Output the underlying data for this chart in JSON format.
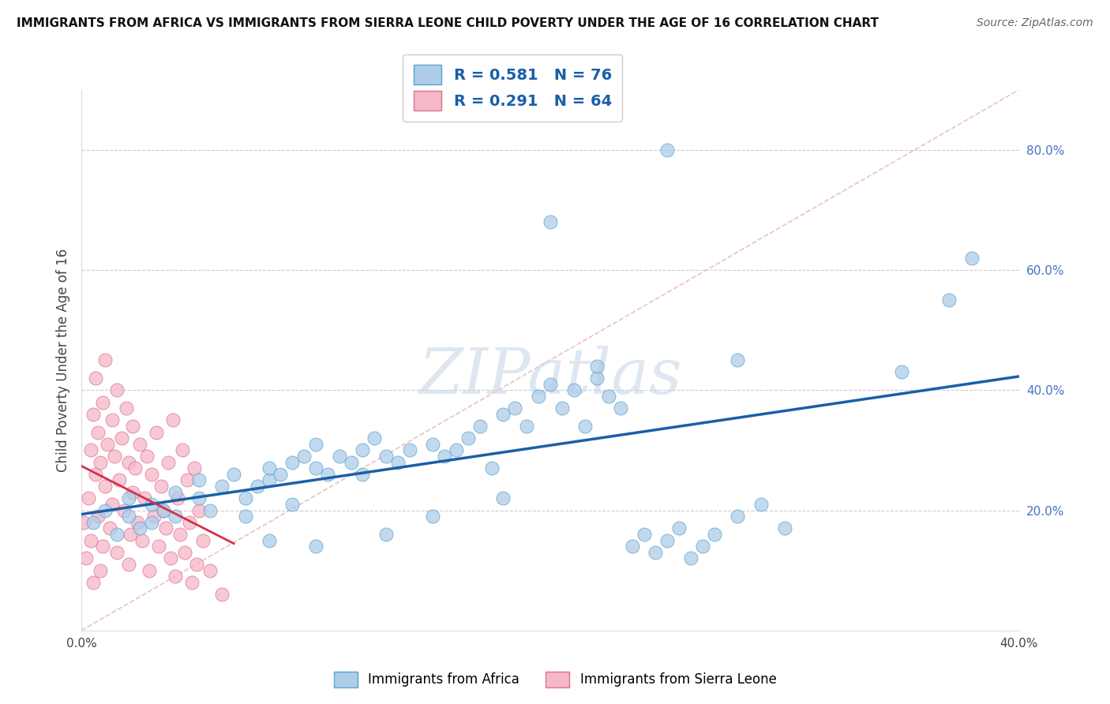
{
  "title": "IMMIGRANTS FROM AFRICA VS IMMIGRANTS FROM SIERRA LEONE CHILD POVERTY UNDER THE AGE OF 16 CORRELATION CHART",
  "source": "Source: ZipAtlas.com",
  "ylabel": "Child Poverty Under the Age of 16",
  "xlim": [
    0.0,
    0.4
  ],
  "ylim": [
    0.0,
    0.9
  ],
  "R_africa": 0.581,
  "N_africa": 76,
  "R_sierra": 0.291,
  "N_sierra": 64,
  "africa_color": "#aecde8",
  "africa_edge": "#5ba3d0",
  "sierra_color": "#f5b8c8",
  "sierra_edge": "#e07090",
  "africa_line_color": "#1a5fa8",
  "sierra_line_color": "#d4324a",
  "ref_line_color": "#e8b0b8",
  "watermark_color": "#c8d8e8",
  "africa_x": [
    0.005,
    0.01,
    0.015,
    0.02,
    0.02,
    0.025,
    0.03,
    0.03,
    0.035,
    0.04,
    0.04,
    0.05,
    0.05,
    0.055,
    0.06,
    0.065,
    0.07,
    0.07,
    0.075,
    0.08,
    0.08,
    0.085,
    0.09,
    0.09,
    0.095,
    0.1,
    0.1,
    0.105,
    0.11,
    0.115,
    0.12,
    0.12,
    0.125,
    0.13,
    0.135,
    0.14,
    0.15,
    0.155,
    0.16,
    0.165,
    0.17,
    0.175,
    0.18,
    0.185,
    0.19,
    0.195,
    0.2,
    0.205,
    0.21,
    0.215,
    0.22,
    0.225,
    0.23,
    0.235,
    0.24,
    0.245,
    0.25,
    0.255,
    0.26,
    0.265,
    0.27,
    0.28,
    0.29,
    0.3,
    0.22,
    0.28,
    0.35,
    0.37,
    0.38,
    0.25,
    0.2,
    0.18,
    0.15,
    0.13,
    0.1,
    0.08
  ],
  "africa_y": [
    0.18,
    0.2,
    0.16,
    0.22,
    0.19,
    0.17,
    0.21,
    0.18,
    0.2,
    0.19,
    0.23,
    0.22,
    0.25,
    0.2,
    0.24,
    0.26,
    0.22,
    0.19,
    0.24,
    0.25,
    0.27,
    0.26,
    0.28,
    0.21,
    0.29,
    0.27,
    0.31,
    0.26,
    0.29,
    0.28,
    0.3,
    0.26,
    0.32,
    0.29,
    0.28,
    0.3,
    0.31,
    0.29,
    0.3,
    0.32,
    0.34,
    0.27,
    0.36,
    0.37,
    0.34,
    0.39,
    0.41,
    0.37,
    0.4,
    0.34,
    0.42,
    0.39,
    0.37,
    0.14,
    0.16,
    0.13,
    0.15,
    0.17,
    0.12,
    0.14,
    0.16,
    0.19,
    0.21,
    0.17,
    0.44,
    0.45,
    0.43,
    0.55,
    0.62,
    0.8,
    0.68,
    0.22,
    0.19,
    0.16,
    0.14,
    0.15
  ],
  "sierra_x": [
    0.001,
    0.002,
    0.003,
    0.004,
    0.004,
    0.005,
    0.005,
    0.006,
    0.006,
    0.007,
    0.007,
    0.008,
    0.008,
    0.009,
    0.009,
    0.01,
    0.01,
    0.011,
    0.012,
    0.013,
    0.013,
    0.014,
    0.015,
    0.015,
    0.016,
    0.017,
    0.018,
    0.019,
    0.02,
    0.02,
    0.021,
    0.022,
    0.022,
    0.023,
    0.024,
    0.025,
    0.026,
    0.027,
    0.028,
    0.029,
    0.03,
    0.031,
    0.032,
    0.033,
    0.034,
    0.035,
    0.036,
    0.037,
    0.038,
    0.039,
    0.04,
    0.041,
    0.042,
    0.043,
    0.044,
    0.045,
    0.046,
    0.047,
    0.048,
    0.049,
    0.05,
    0.052,
    0.055,
    0.06
  ],
  "sierra_y": [
    0.18,
    0.12,
    0.22,
    0.3,
    0.15,
    0.36,
    0.08,
    0.26,
    0.42,
    0.19,
    0.33,
    0.1,
    0.28,
    0.38,
    0.14,
    0.24,
    0.45,
    0.31,
    0.17,
    0.35,
    0.21,
    0.29,
    0.13,
    0.4,
    0.25,
    0.32,
    0.2,
    0.37,
    0.11,
    0.28,
    0.16,
    0.34,
    0.23,
    0.27,
    0.18,
    0.31,
    0.15,
    0.22,
    0.29,
    0.1,
    0.26,
    0.19,
    0.33,
    0.14,
    0.24,
    0.2,
    0.17,
    0.28,
    0.12,
    0.35,
    0.09,
    0.22,
    0.16,
    0.3,
    0.13,
    0.25,
    0.18,
    0.08,
    0.27,
    0.11,
    0.2,
    0.15,
    0.1,
    0.06
  ]
}
